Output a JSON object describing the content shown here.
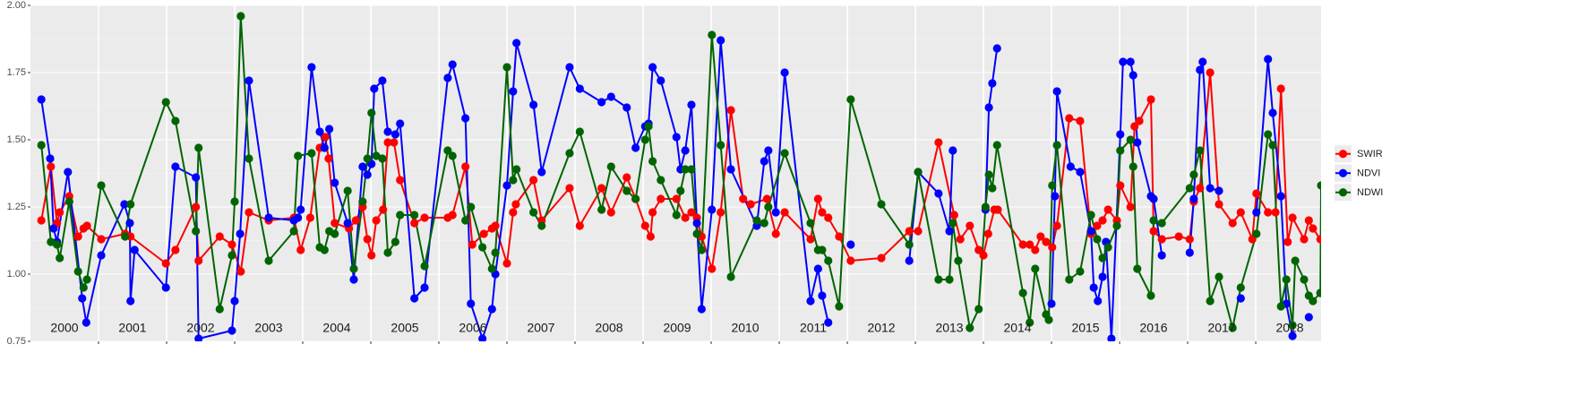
{
  "chart_data": {
    "type": "line",
    "xlim": [
      2000,
      2018.96
    ],
    "xticks": [
      2001,
      2002,
      2003,
      2004,
      2005,
      2006,
      2007,
      2008,
      2009,
      2010,
      2011,
      2012,
      2013,
      2014,
      2015,
      2016,
      2017,
      2018
    ],
    "year_labels": [
      "2000",
      "2001",
      "2002",
      "2003",
      "2004",
      "2005",
      "2006",
      "2007",
      "2008",
      "2009",
      "2010",
      "2011",
      "2012",
      "2013",
      "2014",
      "2015",
      "2016",
      "2017",
      "2018"
    ],
    "ylim": [
      0.75,
      2.0
    ],
    "yticks": [
      {
        "value": 0.75,
        "label": "0.75"
      },
      {
        "value": 1.0,
        "label": "1.00"
      },
      {
        "value": 1.25,
        "label": "1.25"
      },
      {
        "value": 1.5,
        "label": "1.50"
      },
      {
        "value": 1.75,
        "label": "1.75"
      },
      {
        "value": 2.0,
        "label": "2.00"
      }
    ],
    "grid": true,
    "minor_grid": true,
    "legend": "right",
    "series": [
      {
        "name": "SWIR",
        "color": "#ff0000",
        "x": [
          2000.16,
          2000.3,
          2000.39,
          2000.43,
          2000.57,
          2000.7,
          2000.78,
          2000.83,
          2001.04,
          2001.39,
          2001.47,
          2001.99,
          2002.13,
          2002.43,
          2002.47,
          2002.78,
          2002.96,
          2003.09,
          2003.21,
          2003.5,
          2003.87,
          2003.97,
          2004.11,
          2004.25,
          2004.33,
          2004.38,
          2004.47,
          2004.68,
          2004.78,
          2004.88,
          2004.95,
          2005.01,
          2005.08,
          2005.18,
          2005.25,
          2005.34,
          2005.43,
          2005.64,
          2005.79,
          2006.13,
          2006.2,
          2006.39,
          2006.49,
          2006.66,
          2006.78,
          2006.83,
          2007.0,
          2007.09,
          2007.13,
          2007.39,
          2007.51,
          2007.92,
          2008.07,
          2008.39,
          2008.53,
          2008.76,
          2008.89,
          2009.03,
          2009.11,
          2009.14,
          2009.26,
          2009.49,
          2009.62,
          2009.71,
          2009.79,
          2009.86,
          2010.01,
          2010.14,
          2010.29,
          2010.47,
          2010.58,
          2010.82,
          2010.95,
          2011.08,
          2011.46,
          2011.57,
          2011.63,
          2011.72,
          2011.88,
          2012.05,
          2012.5,
          2012.91,
          2013.04,
          2013.34,
          2013.57,
          2013.66,
          2013.8,
          2013.93,
          2014.0,
          2014.07,
          2014.16,
          2014.21,
          2014.58,
          2014.68,
          2014.76,
          2014.84,
          2014.92,
          2015.01,
          2015.08,
          2015.26,
          2015.42,
          2015.58,
          2015.67,
          2015.75,
          2015.83,
          2015.96,
          2016.01,
          2016.16,
          2016.22,
          2016.29,
          2016.46,
          2016.5,
          2016.62,
          2016.87,
          2017.03,
          2017.09,
          2017.18,
          2017.33,
          2017.46,
          2017.66,
          2017.78,
          2017.95,
          2018.01,
          2018.18,
          2018.29,
          2018.37,
          2018.47,
          2018.54,
          2018.71,
          2018.78,
          2018.84,
          2018.95
        ],
        "values": [
          1.2,
          1.4,
          1.19,
          1.23,
          1.29,
          1.14,
          1.17,
          1.18,
          1.13,
          1.15,
          1.14,
          1.04,
          1.09,
          1.25,
          1.05,
          1.14,
          1.11,
          1.01,
          1.23,
          1.2,
          1.21,
          1.09,
          1.21,
          1.47,
          1.51,
          1.43,
          1.19,
          1.17,
          1.2,
          1.25,
          1.13,
          1.07,
          1.2,
          1.24,
          1.49,
          1.49,
          1.35,
          1.19,
          1.21,
          1.21,
          1.22,
          1.4,
          1.11,
          1.15,
          1.17,
          1.18,
          1.04,
          1.23,
          1.26,
          1.35,
          1.2,
          1.32,
          1.18,
          1.32,
          1.23,
          1.36,
          1.28,
          1.18,
          1.14,
          1.23,
          1.28,
          1.28,
          1.21,
          1.23,
          1.21,
          1.14,
          1.02,
          1.23,
          1.61,
          1.28,
          1.26,
          1.28,
          1.15,
          1.23,
          1.13,
          1.28,
          1.23,
          1.21,
          1.14,
          1.05,
          1.06,
          1.16,
          1.16,
          1.49,
          1.22,
          1.13,
          1.18,
          1.09,
          1.07,
          1.15,
          1.24,
          1.24,
          1.11,
          1.11,
          1.09,
          1.14,
          1.12,
          1.1,
          1.18,
          1.58,
          1.57,
          1.15,
          1.18,
          1.2,
          1.24,
          1.2,
          1.33,
          1.25,
          1.55,
          1.57,
          1.65,
          1.16,
          1.13,
          1.14,
          1.13,
          1.27,
          1.32,
          1.75,
          1.26,
          1.19,
          1.23,
          1.13,
          1.3,
          1.23,
          1.23,
          1.69,
          1.12,
          1.21,
          1.13,
          1.2,
          1.17,
          1.13
        ]
      },
      {
        "name": "NDVI",
        "color": "#0000ff",
        "x": [
          2000.16,
          2000.29,
          2000.34,
          2000.39,
          2000.55,
          2000.76,
          2000.82,
          2001.04,
          2001.38,
          2001.46,
          2001.47,
          2001.53,
          2001.99,
          2002.13,
          2002.43,
          2002.47,
          2002.96,
          2003.0,
          2003.08,
          2003.21,
          2003.5,
          2003.87,
          2003.93,
          2003.97,
          2004.13,
          2004.25,
          2004.32,
          2004.39,
          2004.47,
          2004.66,
          2004.75,
          2004.88,
          2004.95,
          2005.01,
          2005.05,
          2005.17,
          2005.25,
          2005.36,
          2005.43,
          2005.64,
          2005.79,
          2006.13,
          2006.2,
          2006.39,
          2006.47,
          2006.64,
          2006.78,
          2006.83,
          2007.0,
          2007.09,
          2007.14,
          2007.39,
          2007.51,
          2007.92,
          2008.07,
          2008.39,
          2008.53,
          2008.76,
          2008.89,
          2009.03,
          2009.08,
          2009.14,
          2009.26,
          2009.49,
          2009.55,
          2009.62,
          2009.71,
          2009.79,
          2009.86,
          2010.01,
          2010.14,
          2010.29,
          2010.67,
          2010.78,
          2010.84,
          2010.95,
          2011.08,
          2011.46,
          2011.57,
          2011.63,
          2011.72,
          null,
          2012.05,
          null,
          2012.91,
          2013.04,
          2013.34,
          2013.5,
          2013.55,
          null,
          2014.03,
          2014.08,
          2014.13,
          2014.2,
          null,
          2015.0,
          2015.05,
          2015.08,
          2015.28,
          2015.42,
          2015.58,
          2015.62,
          2015.68,
          2015.75,
          2015.8,
          2015.88,
          2016.01,
          2016.05,
          2016.16,
          2016.2,
          2016.26,
          2016.46,
          2016.5,
          2016.62,
          null,
          2017.03,
          2017.09,
          2017.18,
          2017.22,
          2017.33,
          2017.46,
          null,
          2017.78,
          null,
          2018.01,
          2018.18,
          2018.25,
          2018.37,
          2018.45,
          2018.54,
          null,
          2018.78,
          null,
          2018.95
        ],
        "values": [
          1.65,
          1.43,
          1.17,
          1.12,
          1.38,
          0.91,
          0.82,
          1.07,
          1.26,
          1.19,
          0.9,
          1.09,
          0.95,
          1.4,
          1.36,
          0.76,
          0.79,
          0.9,
          1.15,
          1.72,
          1.21,
          1.2,
          1.21,
          1.24,
          1.77,
          1.53,
          1.47,
          1.54,
          1.34,
          1.19,
          0.98,
          1.4,
          1.37,
          1.41,
          1.69,
          1.72,
          1.53,
          1.52,
          1.56,
          0.91,
          0.95,
          1.73,
          1.78,
          1.58,
          0.89,
          0.76,
          0.87,
          1.0,
          1.33,
          1.68,
          1.86,
          1.63,
          1.38,
          1.77,
          1.69,
          1.64,
          1.66,
          1.62,
          1.47,
          1.55,
          1.56,
          1.77,
          1.72,
          1.51,
          1.39,
          1.46,
          1.63,
          1.19,
          0.87,
          1.24,
          1.87,
          1.39,
          1.18,
          1.42,
          1.46,
          1.23,
          1.75,
          0.9,
          1.02,
          0.92,
          0.82,
          null,
          1.11,
          null,
          1.05,
          1.38,
          1.3,
          1.16,
          1.46,
          null,
          1.24,
          1.62,
          1.71,
          1.84,
          null,
          0.89,
          1.29,
          1.68,
          1.4,
          1.38,
          1.16,
          0.95,
          0.9,
          0.99,
          1.12,
          0.76,
          1.52,
          1.79,
          1.79,
          1.74,
          1.49,
          1.29,
          1.28,
          1.07,
          null,
          1.08,
          1.28,
          1.76,
          1.79,
          1.32,
          1.31,
          null,
          0.91,
          null,
          1.23,
          1.8,
          1.6,
          1.29,
          0.89,
          0.77,
          null,
          0.84,
          null,
          0.93
        ]
      },
      {
        "name": "NDWI",
        "color": "#006400",
        "x": [
          2000.16,
          2000.3,
          2000.39,
          2000.43,
          2000.57,
          2000.7,
          2000.78,
          2000.83,
          2001.04,
          2001.39,
          2001.47,
          2001.99,
          2002.13,
          2002.43,
          2002.47,
          2002.78,
          2002.96,
          2003.0,
          2003.09,
          2003.21,
          2003.5,
          2003.87,
          2003.93,
          2004.13,
          2004.25,
          2004.32,
          2004.39,
          2004.47,
          2004.66,
          2004.75,
          2004.88,
          2004.95,
          2005.01,
          2005.08,
          2005.17,
          2005.25,
          2005.36,
          2005.43,
          2005.64,
          2005.79,
          2006.13,
          2006.2,
          2006.39,
          2006.47,
          2006.64,
          2006.78,
          2006.83,
          2007.0,
          2007.09,
          2007.14,
          2007.39,
          2007.51,
          2007.92,
          2008.07,
          2008.39,
          2008.53,
          2008.76,
          2008.89,
          2009.03,
          2009.08,
          2009.14,
          2009.26,
          2009.49,
          2009.55,
          2009.62,
          2009.71,
          2009.79,
          2009.86,
          2010.01,
          2010.14,
          2010.29,
          2010.67,
          2010.78,
          2010.84,
          2011.08,
          2011.46,
          2011.57,
          2011.63,
          2011.72,
          2011.88,
          2012.05,
          2012.5,
          2012.91,
          2013.04,
          2013.34,
          2013.5,
          2013.55,
          2013.63,
          2013.8,
          2013.93,
          2014.03,
          2014.08,
          2014.13,
          2014.2,
          2014.58,
          2014.68,
          2014.76,
          2014.92,
          2014.96,
          2015.01,
          2015.08,
          2015.26,
          2015.42,
          2015.58,
          2015.67,
          2015.75,
          2015.83,
          2015.96,
          2016.01,
          2016.16,
          2016.2,
          2016.26,
          2016.46,
          2016.5,
          2016.62,
          2017.03,
          2017.09,
          2017.18,
          2017.33,
          2017.46,
          2017.66,
          2017.78,
          2018.01,
          2018.18,
          2018.25,
          2018.37,
          2018.45,
          2018.54,
          2018.58,
          2018.71,
          2018.78,
          2018.84,
          2018.95,
          2018.96
        ],
        "values": [
          1.48,
          1.12,
          1.11,
          1.06,
          1.27,
          1.01,
          0.95,
          0.98,
          1.33,
          1.14,
          1.26,
          1.64,
          1.57,
          1.16,
          1.47,
          0.87,
          1.07,
          1.27,
          1.96,
          1.43,
          1.05,
          1.16,
          1.44,
          1.45,
          1.1,
          1.09,
          1.16,
          1.15,
          1.31,
          1.02,
          1.27,
          1.43,
          1.6,
          1.44,
          1.43,
          1.08,
          1.12,
          1.22,
          1.22,
          1.03,
          1.46,
          1.44,
          1.2,
          1.25,
          1.1,
          1.02,
          1.08,
          1.77,
          1.35,
          1.39,
          1.23,
          1.18,
          1.45,
          1.53,
          1.24,
          1.4,
          1.31,
          1.28,
          1.5,
          1.55,
          1.42,
          1.35,
          1.22,
          1.31,
          1.39,
          1.39,
          1.15,
          1.09,
          1.89,
          1.48,
          0.99,
          1.2,
          1.19,
          1.25,
          1.45,
          1.19,
          1.09,
          1.09,
          1.05,
          0.88,
          1.65,
          1.26,
          1.11,
          1.38,
          0.98,
          0.98,
          1.19,
          1.05,
          0.8,
          0.87,
          1.25,
          1.37,
          1.32,
          1.48,
          0.93,
          0.82,
          1.02,
          0.85,
          0.83,
          1.33,
          1.48,
          0.98,
          1.01,
          1.22,
          1.13,
          1.06,
          1.1,
          1.18,
          1.46,
          1.5,
          1.4,
          1.02,
          0.92,
          1.2,
          1.19,
          1.32,
          1.37,
          1.46,
          0.9,
          0.99,
          0.8,
          0.95,
          1.15,
          1.52,
          1.48,
          0.88,
          0.98,
          0.81,
          1.05,
          0.98,
          0.92,
          0.9,
          0.93,
          1.33
        ]
      }
    ]
  }
}
